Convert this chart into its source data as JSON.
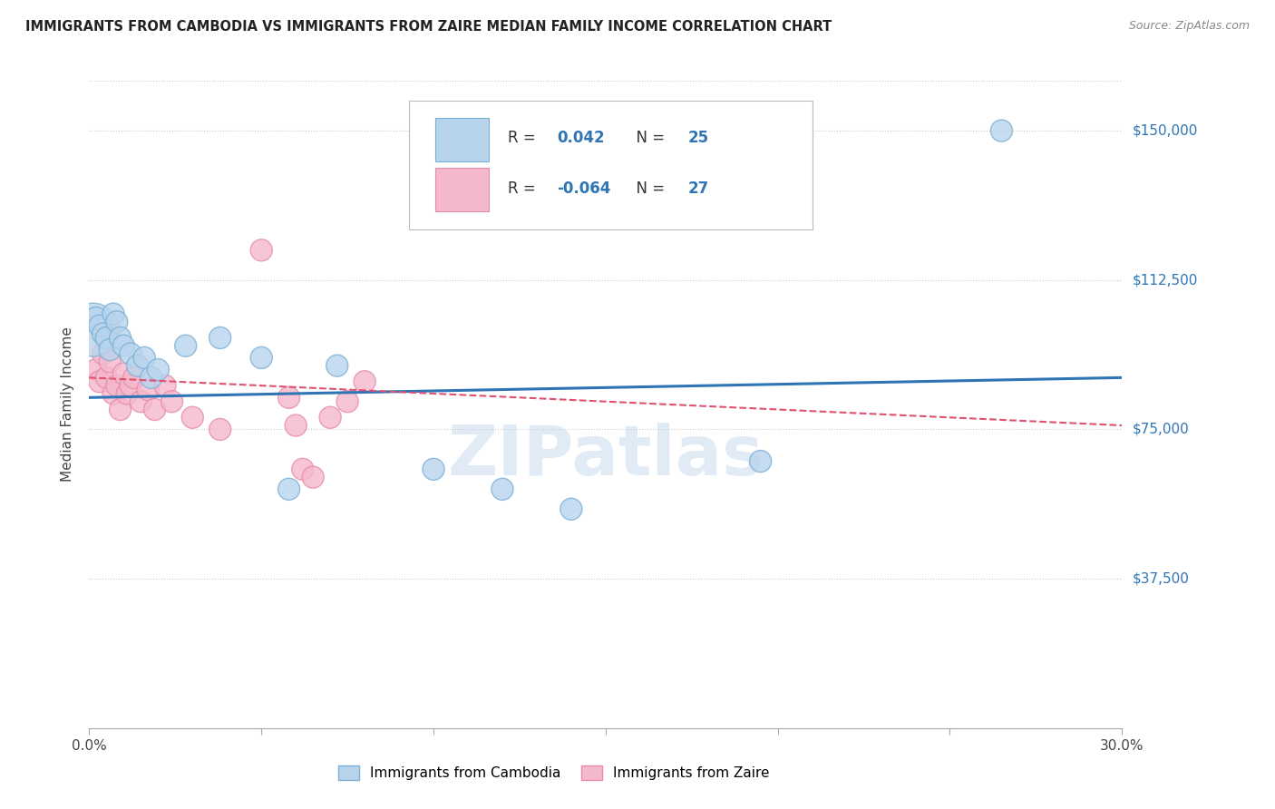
{
  "title": "IMMIGRANTS FROM CAMBODIA VS IMMIGRANTS FROM ZAIRE MEDIAN FAMILY INCOME CORRELATION CHART",
  "source": "Source: ZipAtlas.com",
  "ylabel": "Median Family Income",
  "yticks": [
    37500,
    75000,
    112500,
    150000
  ],
  "ytick_labels": [
    "$37,500",
    "$75,000",
    "$112,500",
    "$150,000"
  ],
  "xlim": [
    0.0,
    0.3
  ],
  "ylim": [
    0,
    162500
  ],
  "watermark": "ZIPatlas",
  "cambodia_color": "#b8d4ed",
  "cambodia_edge_color": "#7bafd4",
  "cambodia_line_color": "#2e75b6",
  "zaire_color": "#f4b8cc",
  "zaire_edge_color": "#e88aaa",
  "zaire_line_color": "#e05070",
  "R_cambodia": "0.042",
  "N_cambodia": "25",
  "R_zaire": "-0.064",
  "N_zaire": "27",
  "legend_R_label_color": "#333333",
  "legend_RN_value_color": "#2e75b6",
  "cambodia_x": [
    0.001,
    0.002,
    0.003,
    0.004,
    0.005,
    0.006,
    0.007,
    0.008,
    0.009,
    0.01,
    0.012,
    0.014,
    0.016,
    0.018,
    0.02,
    0.028,
    0.038,
    0.05,
    0.058,
    0.072,
    0.1,
    0.12,
    0.14,
    0.195,
    0.265
  ],
  "cambodia_y": [
    100000,
    103000,
    101000,
    99000,
    98000,
    95000,
    104000,
    102000,
    98000,
    96000,
    94000,
    91000,
    93000,
    88000,
    90000,
    96000,
    98000,
    93000,
    60000,
    91000,
    65000,
    60000,
    55000,
    67000,
    150000
  ],
  "cambodia_size": [
    1800,
    300,
    300,
    300,
    300,
    300,
    300,
    300,
    300,
    300,
    300,
    300,
    300,
    300,
    300,
    300,
    300,
    300,
    300,
    300,
    300,
    300,
    300,
    300,
    300
  ],
  "zaire_x": [
    0.002,
    0.003,
    0.004,
    0.005,
    0.006,
    0.007,
    0.008,
    0.009,
    0.01,
    0.011,
    0.012,
    0.013,
    0.015,
    0.017,
    0.019,
    0.022,
    0.024,
    0.03,
    0.038,
    0.05,
    0.058,
    0.06,
    0.062,
    0.065,
    0.07,
    0.075,
    0.08
  ],
  "zaire_y": [
    90000,
    87000,
    94000,
    88000,
    92000,
    84000,
    86000,
    80000,
    89000,
    84000,
    86000,
    88000,
    82000,
    85000,
    80000,
    86000,
    82000,
    78000,
    75000,
    120000,
    83000,
    76000,
    65000,
    63000,
    78000,
    82000,
    87000
  ],
  "zaire_size": [
    300,
    300,
    300,
    300,
    300,
    300,
    300,
    300,
    300,
    300,
    300,
    300,
    300,
    300,
    300,
    300,
    300,
    300,
    300,
    300,
    300,
    300,
    300,
    300,
    300,
    300,
    300
  ],
  "trend_cambodia_x0": 0.0,
  "trend_cambodia_y0": 83000,
  "trend_cambodia_x1": 0.3,
  "trend_cambodia_y1": 88000,
  "trend_zaire_x0": 0.0,
  "trend_zaire_y0": 88000,
  "trend_zaire_x1": 0.3,
  "trend_zaire_y1": 76000
}
